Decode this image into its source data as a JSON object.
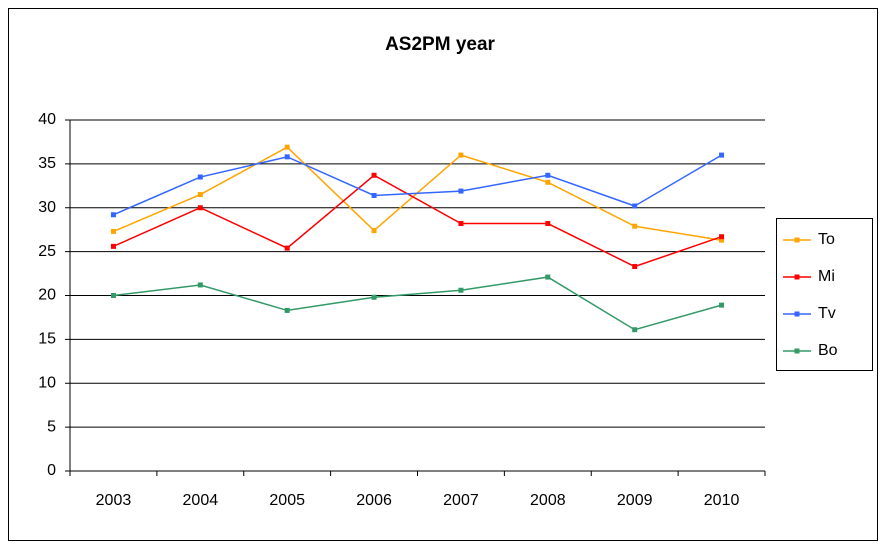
{
  "chart_data": {
    "type": "line",
    "title": "AS2PM year",
    "categories": [
      "2003",
      "2004",
      "2005",
      "2006",
      "2007",
      "2008",
      "2009",
      "2010"
    ],
    "series": [
      {
        "name": "To",
        "color": "#ffa500",
        "values": [
          27.3,
          31.5,
          36.9,
          27.4,
          36.0,
          32.9,
          27.9,
          26.3
        ]
      },
      {
        "name": "Mi",
        "color": "#ff0000",
        "values": [
          25.6,
          30.0,
          25.4,
          33.7,
          28.2,
          28.2,
          23.3,
          26.7
        ]
      },
      {
        "name": "Tv",
        "color": "#3366ff",
        "values": [
          29.2,
          33.5,
          35.8,
          31.4,
          31.9,
          33.7,
          30.2,
          36.0
        ]
      },
      {
        "name": "Bo",
        "color": "#339966",
        "values": [
          20.0,
          21.2,
          18.3,
          19.8,
          20.6,
          22.1,
          16.1,
          18.9
        ]
      }
    ],
    "ylim": [
      0,
      40
    ],
    "yticks": [
      0,
      5,
      10,
      15,
      20,
      25,
      30,
      35,
      40
    ],
    "grid": true,
    "legend": "right"
  }
}
